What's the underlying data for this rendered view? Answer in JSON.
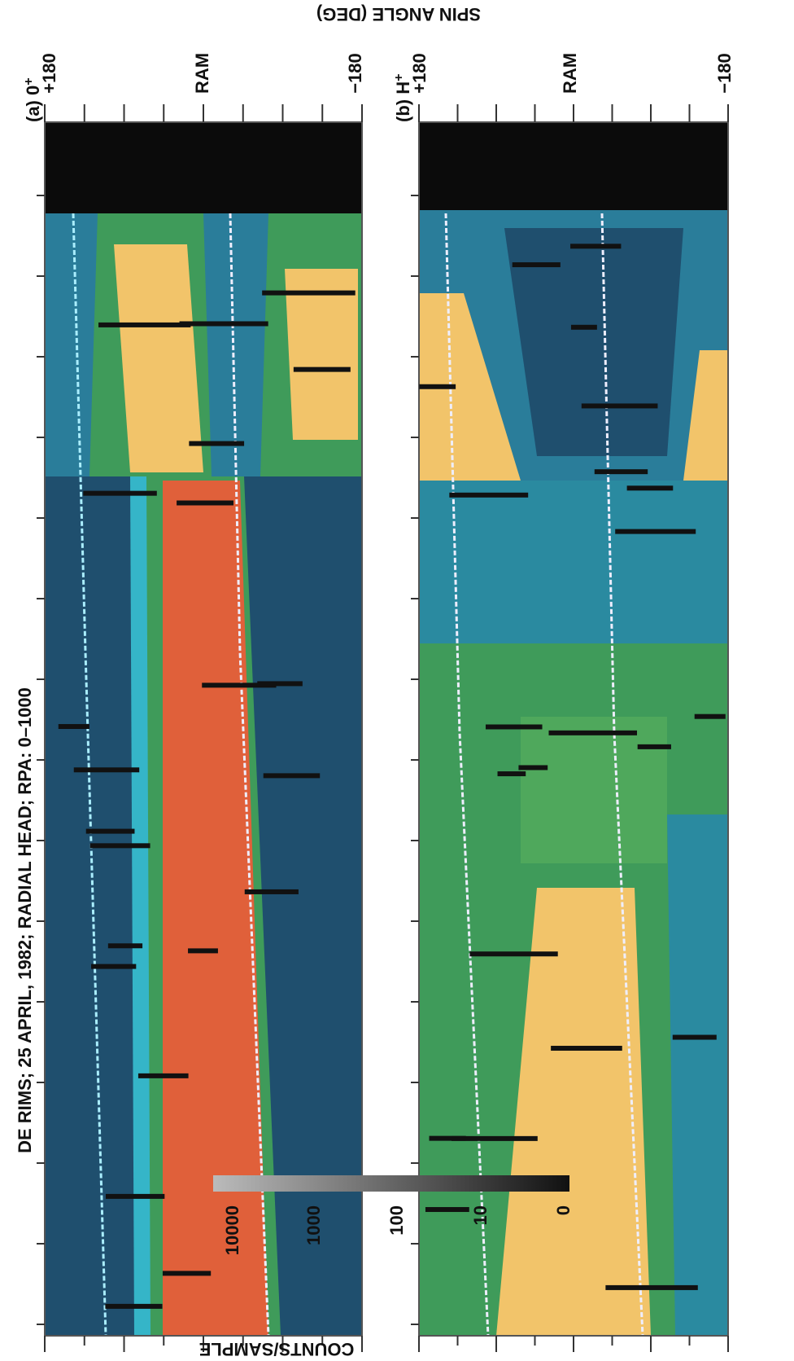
{
  "title": "DE RIMS; 25 APRIL, 1982; RADIAL HEAD; RPA:  0–1000",
  "axis_label": "SPIN ANGLE (DEG)",
  "panels": [
    {
      "label": "(a) 0",
      "species_charge": "+",
      "ticks": [
        "+180",
        "RAM",
        "−180"
      ]
    },
    {
      "label": "(b) H",
      "species_charge": "+",
      "ticks": [
        "+180",
        "RAM",
        "−180"
      ]
    }
  ],
  "colorbar": {
    "label": "COUNTS/SAMPLE",
    "ticks": [
      "10000",
      "1000",
      "100",
      "10",
      "0"
    ]
  }
}
